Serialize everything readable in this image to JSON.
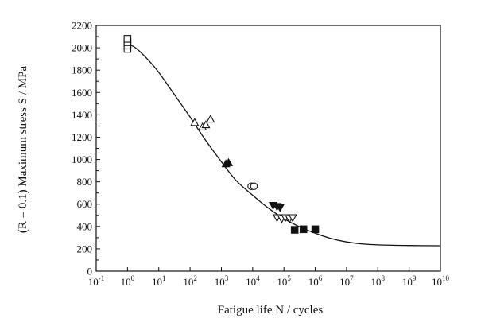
{
  "chart_data": {
    "type": "scatter",
    "title": "",
    "xlabel": "Fatigue life N / cycles",
    "ylabel": "(R = 0.1) Maximum stress S / MPa",
    "x_scale": "log",
    "xlim": [
      0.1,
      10000000000
    ],
    "ylim": [
      0,
      2200
    ],
    "x_tick_exponents": [
      -1,
      0,
      1,
      2,
      3,
      4,
      5,
      6,
      7,
      8,
      9,
      10
    ],
    "y_ticks": [
      0,
      200,
      400,
      600,
      800,
      1000,
      1200,
      1400,
      1600,
      1800,
      2000,
      2200
    ],
    "grid": false,
    "legend": "none",
    "series": [
      {
        "marker": "open-square",
        "points": [
          [
            1,
            1990
          ],
          [
            1,
            2020
          ],
          [
            1,
            2050
          ],
          [
            1,
            2080
          ]
        ]
      },
      {
        "marker": "open-triangle-up",
        "points": [
          [
            140,
            1330
          ],
          [
            250,
            1290
          ],
          [
            320,
            1310
          ],
          [
            450,
            1360
          ]
        ]
      },
      {
        "marker": "filled-triangle-up",
        "points": [
          [
            1400,
            960
          ],
          [
            1700,
            970
          ]
        ]
      },
      {
        "marker": "open-circle",
        "points": [
          [
            9000,
            760
          ],
          [
            11000,
            760
          ]
        ]
      },
      {
        "marker": "filled-triangle-down",
        "points": [
          [
            45000,
            590
          ],
          [
            60000,
            580
          ],
          [
            75000,
            570
          ]
        ]
      },
      {
        "marker": "open-triangle-down",
        "points": [
          [
            60000,
            480
          ],
          [
            85000,
            470
          ],
          [
            110000,
            480
          ],
          [
            150000,
            470
          ],
          [
            190000,
            480
          ]
        ]
      },
      {
        "marker": "filled-square",
        "points": [
          [
            220000,
            370
          ],
          [
            420000,
            375
          ],
          [
            1000000,
            375
          ]
        ]
      }
    ],
    "fit_curve": {
      "style": "solid",
      "color": "#111111",
      "points": [
        [
          1,
          2040
        ],
        [
          2,
          1990
        ],
        [
          5,
          1880
        ],
        [
          10,
          1780
        ],
        [
          30,
          1590
        ],
        [
          100,
          1380
        ],
        [
          300,
          1180
        ],
        [
          1000,
          980
        ],
        [
          3000,
          810
        ],
        [
          10000,
          680
        ],
        [
          30000,
          570
        ],
        [
          100000,
          470
        ],
        [
          300000,
          400
        ],
        [
          1000000,
          340
        ],
        [
          3000000,
          295
        ],
        [
          10000000,
          262
        ],
        [
          30000000,
          245
        ],
        [
          100000000,
          236
        ],
        [
          1000000000,
          230
        ],
        [
          10000000000,
          228
        ]
      ]
    }
  }
}
